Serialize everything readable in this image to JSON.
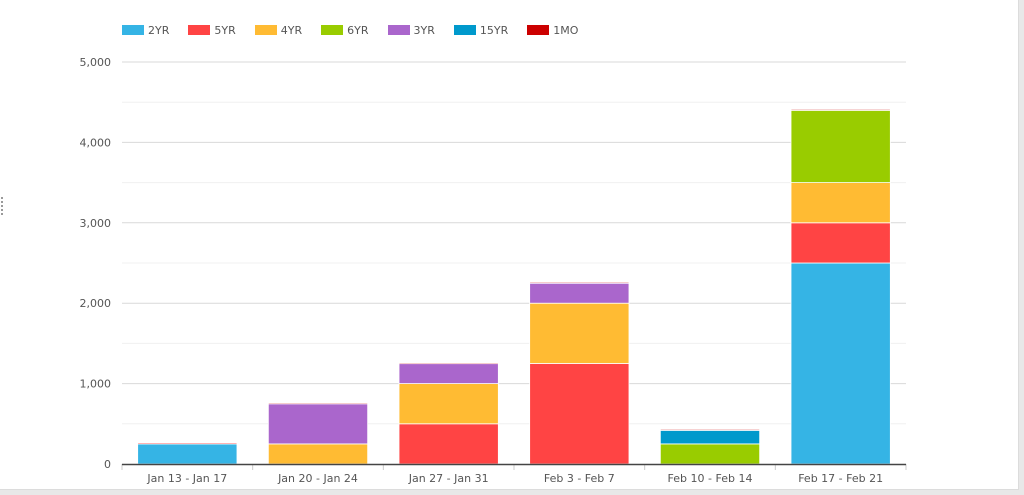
{
  "chart_data": {
    "type": "bar",
    "stacked": true,
    "title": "",
    "xlabel": "",
    "ylabel": "",
    "ylim": [
      0,
      5000
    ],
    "yticks": [
      0,
      1000,
      2000,
      3000,
      4000,
      5000
    ],
    "ytick_labels": [
      "0",
      "1,000",
      "2,000",
      "3,000",
      "4,000",
      "5,000"
    ],
    "grid": true,
    "legend_position": "top-left",
    "categories": [
      "Jan 13 - Jan 17",
      "Jan 20 - Jan 24",
      "Jan 27 - Jan 31",
      "Feb 3 - Feb 7",
      "Feb 10 - Feb 14",
      "Feb 17 - Feb 21"
    ],
    "series": [
      {
        "name": "2YR",
        "color": "#35b4e5",
        "values": [
          250,
          0,
          0,
          0,
          0,
          2500
        ]
      },
      {
        "name": "5YR",
        "color": "#ff4444",
        "values": [
          15,
          0,
          500,
          1250,
          0,
          500
        ]
      },
      {
        "name": "4YR",
        "color": "#ffbb33",
        "values": [
          0,
          250,
          500,
          750,
          0,
          500
        ]
      },
      {
        "name": "6YR",
        "color": "#99cc00",
        "values": [
          0,
          0,
          0,
          0,
          250,
          900
        ]
      },
      {
        "name": "3YR",
        "color": "#aa66cc",
        "values": [
          0,
          500,
          250,
          250,
          0,
          0
        ]
      },
      {
        "name": "15YR",
        "color": "#0099cc",
        "values": [
          0,
          0,
          0,
          0,
          170,
          0
        ]
      },
      {
        "name": "1MO",
        "color": "#cc0000",
        "values": [
          0,
          10,
          10,
          10,
          10,
          10
        ]
      }
    ]
  }
}
